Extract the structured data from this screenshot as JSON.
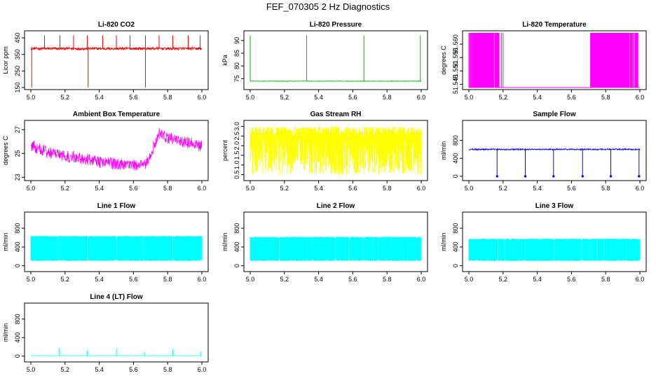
{
  "page_title": "FEF_070305  2 Hz Diagnostics",
  "chart_data": [
    {
      "type": "line",
      "title": "Li-820 CO2",
      "ylabel": "Licor ppm",
      "color": "#ff0000",
      "xlim": [
        5.0,
        6.0
      ],
      "ylim": [
        150,
        480
      ],
      "xticks": [
        "5.0",
        "5.2",
        "5.4",
        "5.6",
        "5.8",
        "6.0"
      ],
      "yticks": [
        150,
        250,
        350,
        450
      ],
      "baseline": 385,
      "noise": 8,
      "spikes_up": [
        5.08,
        5.17,
        5.25,
        5.33,
        5.42,
        5.5,
        5.58,
        5.67,
        5.75,
        5.83,
        5.92,
        5.99
      ],
      "spike_up_value": 465,
      "spikes_down": [
        5.005,
        5.335,
        5.67
      ],
      "spike_down_value": 150
    },
    {
      "type": "line",
      "title": "Li-820 Pressure",
      "ylabel": "kPa",
      "color": "#00bb00",
      "xlim": [
        5.0,
        6.0
      ],
      "ylim": [
        71.5,
        93
      ],
      "xticks": [
        "5.0",
        "5.2",
        "5.4",
        "5.6",
        "5.8",
        "6.0"
      ],
      "yticks": [
        75,
        80,
        85,
        90
      ],
      "baseline": 74,
      "noise": 0.1,
      "spikes_up": [
        5.0,
        5.33,
        5.665,
        5.995
      ],
      "spike_up_value": 92
    },
    {
      "type": "line",
      "title": "Li-820 Temperature",
      "ylabel": "degrees C",
      "color": "#ff00ff",
      "xlim": [
        5.0,
        6.0
      ],
      "ylim": [
        51.5438,
        51.5642
      ],
      "xticks": [
        "5.0",
        "5.2",
        "5.4",
        "5.6",
        "5.8",
        "6.0"
      ],
      "yticks": [
        "51.545",
        "51.550",
        "51.555",
        "51.560"
      ],
      "low_value": 51.5438,
      "high_value": 51.5642,
      "toggle_segments": [
        [
          5.0,
          5.18
        ],
        [
          5.71,
          5.99
        ]
      ]
    },
    {
      "type": "line",
      "title": "Ambient Box Temperature",
      "ylabel": "degrees C",
      "color": "#ff00ff",
      "xlim": [
        5.0,
        6.0
      ],
      "ylim": [
        22.9,
        27.6
      ],
      "xticks": [
        "5.0",
        "5.2",
        "5.4",
        "5.6",
        "5.8",
        "6.0"
      ],
      "yticks": [
        23,
        25,
        27
      ],
      "trend": [
        [
          5.0,
          25.9
        ],
        [
          5.1,
          25.3
        ],
        [
          5.25,
          24.9
        ],
        [
          5.4,
          24.5
        ],
        [
          5.55,
          24.2
        ],
        [
          5.67,
          24.3
        ],
        [
          5.7,
          25.2
        ],
        [
          5.75,
          26.9
        ],
        [
          5.8,
          26.5
        ],
        [
          5.9,
          26.2
        ],
        [
          6.0,
          25.8
        ]
      ],
      "noise": 0.5
    },
    {
      "type": "line",
      "title": "Gas Stream RH",
      "ylabel": "percent",
      "color": "#ffff00",
      "xlim": [
        5.0,
        6.0
      ],
      "ylim": [
        0.3,
        3.2
      ],
      "xticks": [
        "5.0",
        "5.2",
        "5.4",
        "5.6",
        "5.8",
        "6.0"
      ],
      "yticks": [
        "0.5",
        "1.0",
        "1.5",
        "2.0",
        "2.5",
        "3.0"
      ],
      "band": [
        0.5,
        3.0
      ]
    },
    {
      "type": "line",
      "title": "Sample Flow",
      "ylabel": "ml/min",
      "color": "#0000ff",
      "xlim": [
        5.0,
        6.0
      ],
      "ylim": [
        -50,
        1200
      ],
      "xticks": [
        "5.0",
        "5.2",
        "5.4",
        "5.6",
        "5.8",
        "6.0"
      ],
      "yticks": [
        0,
        400,
        800
      ],
      "baseline": 600,
      "noise": 15,
      "drops": [
        5.165,
        5.33,
        5.495,
        5.665,
        5.83,
        5.995
      ],
      "drop_value": 0
    },
    {
      "type": "line",
      "title": "Line 1 Flow",
      "ylabel": "ml/min",
      "color": "#00ffff",
      "xlim": [
        5.0,
        6.0
      ],
      "ylim": [
        -80,
        1100
      ],
      "xticks": [
        "5.0",
        "5.2",
        "5.4",
        "5.6",
        "5.8",
        "6.0"
      ],
      "yticks": [
        0,
        400,
        800
      ],
      "band": [
        100,
        640
      ],
      "gaps": [
        5.16,
        5.33,
        5.5,
        5.66,
        5.83,
        5.995
      ]
    },
    {
      "type": "line",
      "title": "Line 2 Flow",
      "ylabel": "ml/min",
      "color": "#00ffff",
      "xlim": [
        5.0,
        6.0
      ],
      "ylim": [
        -80,
        1100
      ],
      "xticks": [
        "5.0",
        "5.2",
        "5.4",
        "5.6",
        "5.8",
        "6.0"
      ],
      "yticks": [
        0,
        400,
        800
      ],
      "band": [
        100,
        620
      ],
      "gaps": [
        5.17,
        5.33,
        5.36,
        5.5,
        5.58,
        5.66,
        5.72,
        5.75,
        5.83,
        5.92,
        5.995
      ]
    },
    {
      "type": "line",
      "title": "Line 3 Flow",
      "ylabel": "ml/min",
      "color": "#00ffff",
      "xlim": [
        5.0,
        6.0
      ],
      "ylim": [
        -80,
        1100
      ],
      "xticks": [
        "5.0",
        "5.2",
        "5.4",
        "5.6",
        "5.8",
        "6.0"
      ],
      "yticks": [
        0,
        400,
        800
      ],
      "band": [
        100,
        580
      ],
      "gaps": [
        5.17,
        5.21,
        5.29,
        5.33,
        5.5,
        5.66,
        5.7,
        5.75,
        5.79,
        5.83,
        5.87,
        5.92,
        5.995
      ]
    },
    {
      "type": "line",
      "title": "Line 4 (LT) Flow",
      "ylabel": "ml/min",
      "color": "#00ffff",
      "xlim": [
        5.0,
        6.0
      ],
      "ylim": [
        -80,
        1100
      ],
      "xticks": [
        "5.0",
        "5.2",
        "5.4",
        "5.6",
        "5.8",
        "6.0"
      ],
      "yticks": [
        0,
        400,
        800
      ],
      "baseline": 10,
      "spikes_up": [
        5.165,
        5.33,
        5.5,
        5.665,
        5.83,
        5.995
      ],
      "spike_heights": [
        160,
        100,
        150,
        80,
        140,
        90
      ]
    }
  ]
}
